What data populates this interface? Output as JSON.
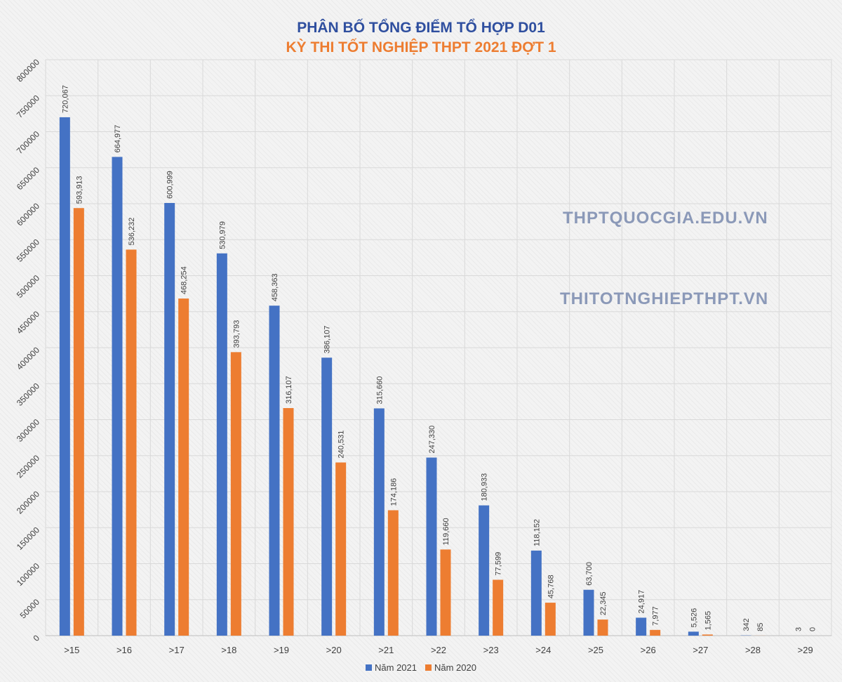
{
  "chart_data": {
    "type": "bar",
    "title": "PHÂN BỐ TỔNG ĐIỂM TỔ HỢP D01",
    "subtitle": "KỲ THI TỐT NGHIỆP THPT 2021 ĐỢT 1",
    "categories": [
      ">15",
      ">16",
      ">17",
      ">18",
      ">19",
      ">20",
      ">21",
      ">22",
      ">23",
      ">24",
      ">25",
      ">26",
      ">27",
      ">28",
      ">29"
    ],
    "series": [
      {
        "name": "Năm 2021",
        "color": "#4472c4",
        "values": [
          720067,
          664977,
          600999,
          530979,
          458363,
          386107,
          315660,
          247330,
          180933,
          118152,
          63700,
          24917,
          5526,
          342,
          3
        ],
        "labels": [
          "720,067",
          "664,977",
          "600,999",
          "530,979",
          "458,363",
          "386,107",
          "315,660",
          "247,330",
          "180,933",
          "118,152",
          "63,700",
          "24,917",
          "5,526",
          "342",
          "3"
        ]
      },
      {
        "name": "Năm 2020",
        "color": "#ed7d31",
        "values": [
          593913,
          536232,
          468254,
          393793,
          316107,
          240531,
          174186,
          119660,
          77599,
          45768,
          22345,
          7977,
          1565,
          85,
          0
        ],
        "labels": [
          "593,913",
          "536,232",
          "468,254",
          "393,793",
          "316,107",
          "240,531",
          "174,186",
          "119,660",
          "77,599",
          "45,768",
          "22,345",
          "7,977",
          "1,565",
          "85",
          "0"
        ]
      }
    ],
    "yticks": [
      0,
      50000,
      100000,
      150000,
      200000,
      250000,
      300000,
      350000,
      400000,
      450000,
      500000,
      550000,
      600000,
      650000,
      700000,
      750000,
      800000
    ],
    "ylim": [
      0,
      800000
    ],
    "grid": true,
    "legend": "bottom-center"
  },
  "watermarks": [
    "THPTQUOCGIA.EDU.VN",
    "THITOTNGHIEPTHPT.VN"
  ]
}
